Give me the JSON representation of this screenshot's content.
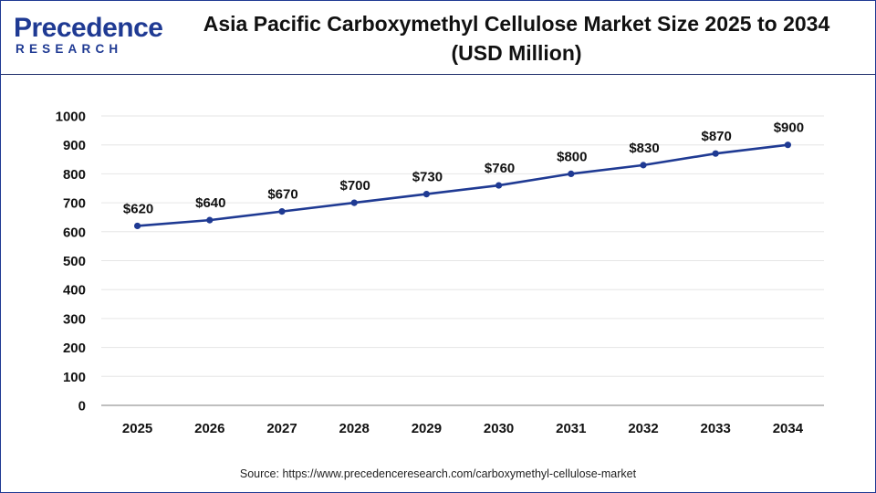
{
  "logo": {
    "brand_top": "Precedence",
    "brand_bottom": "RESEARCH",
    "icon": "magnifier-p-logo-icon"
  },
  "title": {
    "line1": "Asia Pacific Carboxymethyl Cellulose Market Size 2025 to 2034",
    "line2": "(USD Million)"
  },
  "source": "Source: https://www.precedenceresearch.com/carboxymethyl-cellulose-market",
  "colors": {
    "line": "#1f3a93",
    "point": "#1f3a93",
    "brand_blue": "#1f3a93",
    "brand_teal": "#2a7fb8",
    "grid": "#e6e6e6",
    "axis": "#999999",
    "text": "#111111"
  },
  "chart_data": {
    "type": "line",
    "title": "Asia Pacific Carboxymethyl Cellulose Market Size 2025 to 2034 (USD Million)",
    "xlabel": "",
    "ylabel": "",
    "categories": [
      "2025",
      "2026",
      "2027",
      "2028",
      "2029",
      "2030",
      "2031",
      "2032",
      "2033",
      "2034"
    ],
    "series": [
      {
        "values": [
          620,
          640,
          670,
          700,
          730,
          760,
          800,
          830,
          870,
          900
        ],
        "labels": [
          "$620",
          "$640",
          "$670",
          "$700",
          "$730",
          "$760",
          "$800",
          "$830",
          "$870",
          "$900"
        ]
      }
    ],
    "ylim": [
      0,
      1000
    ],
    "yticks": [
      "0",
      "100",
      "200",
      "300",
      "400",
      "500",
      "600",
      "700",
      "800",
      "900",
      "1000"
    ],
    "grid": true,
    "legend": "none"
  }
}
